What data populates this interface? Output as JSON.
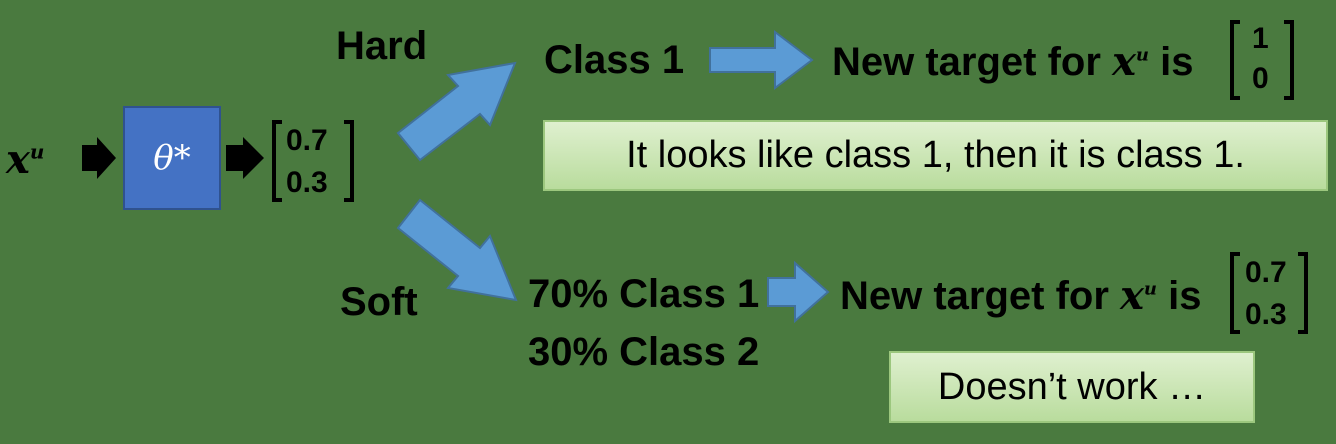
{
  "input": {
    "x_label": "x",
    "superscript": "u"
  },
  "model": {
    "symbol": "θ*"
  },
  "prediction": {
    "top": "0.7",
    "bottom": "0.3"
  },
  "hard_branch": {
    "label": "Hard",
    "class_text": "Class 1",
    "target_text": "New target for",
    "target_var": "x",
    "target_sup": "u",
    "is_text": "is",
    "vector_top": "1",
    "vector_bottom": "0",
    "explanation": "It looks like class 1, then it is class 1."
  },
  "soft_branch": {
    "label": "Soft",
    "line1": "70% Class 1",
    "line2": "30% Class 2",
    "target_text": "New target for",
    "target_var": "x",
    "target_sup": "u",
    "is_text": "is",
    "vector_top": "0.7",
    "vector_bottom": "0.3",
    "explanation": "Doesn’t work …"
  },
  "colors": {
    "background": "#4a7a3f",
    "model_fill": "#4472c4",
    "arrow_fill": "#5b9bd5",
    "box_fill": "#c5e0b4"
  }
}
